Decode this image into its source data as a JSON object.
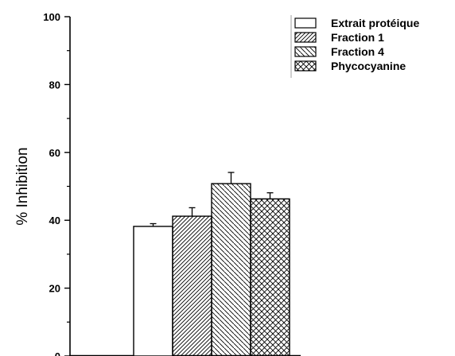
{
  "chart_data": {
    "type": "bar",
    "title": "",
    "xlabel": "",
    "ylabel": "% Inhibition",
    "ylim": [
      0,
      100
    ],
    "yticks": [
      0,
      20,
      40,
      60,
      80,
      100
    ],
    "grid": false,
    "legend_position": "top-right",
    "categories": [
      "Extrait protéique",
      "Fraction 1",
      "Fraction 4",
      "Phycocyanine"
    ],
    "values": [
      38.2,
      41.2,
      50.8,
      46.3
    ],
    "errors": [
      0.8,
      2.5,
      3.3,
      1.8
    ],
    "patterns": [
      "none",
      "diagonal-up",
      "diagonal-down",
      "crosshatch"
    ],
    "colors": {
      "bar_fill": "#ffffff",
      "stroke": "#000000"
    }
  }
}
